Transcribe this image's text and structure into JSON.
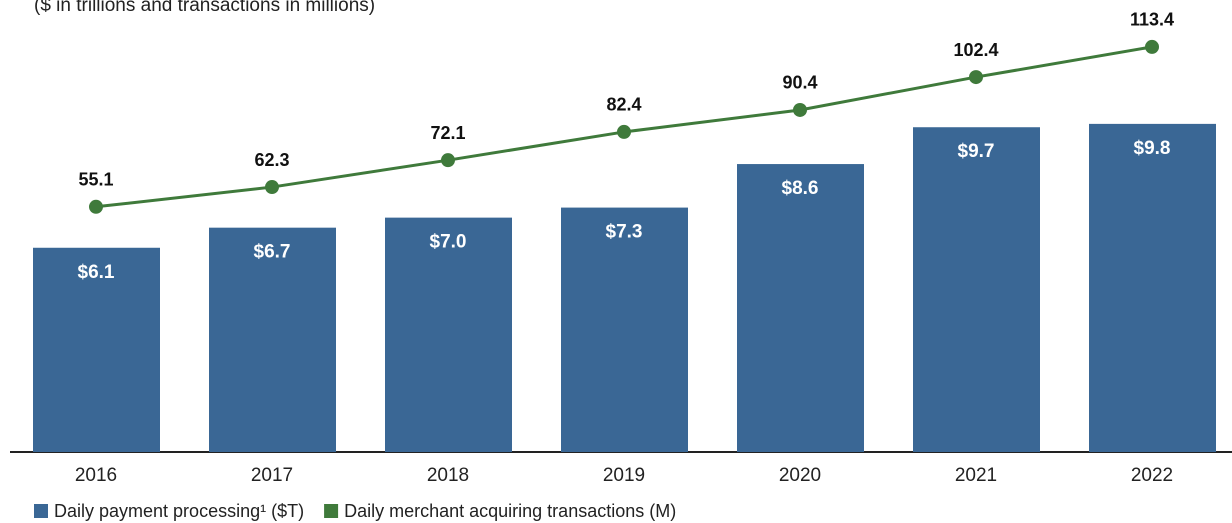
{
  "chart_data": {
    "type": "bar_line",
    "subtitle": "($ in trillions and transactions in millions)",
    "categories": [
      "2016",
      "2017",
      "2018",
      "2019",
      "2020",
      "2021",
      "2022"
    ],
    "series": [
      {
        "name": "Daily payment processing¹ ($T)",
        "type": "bar",
        "color": "#3a6795",
        "values": [
          6.1,
          6.7,
          7.0,
          7.3,
          8.6,
          9.7,
          9.8
        ],
        "value_labels": [
          "$6.1",
          "$6.7",
          "$7.0",
          "$7.3",
          "$8.6",
          "$9.7",
          "$9.8"
        ]
      },
      {
        "name": "Daily merchant acquiring transactions (M)",
        "type": "line",
        "axis": "y2",
        "color": "#3f7a3b",
        "values": [
          55.1,
          62.3,
          72.1,
          82.4,
          90.4,
          102.4,
          113.4
        ]
      }
    ],
    "ylim": [
      0,
      13.5
    ],
    "y2lim": [
      -34.3,
      130.5
    ]
  }
}
